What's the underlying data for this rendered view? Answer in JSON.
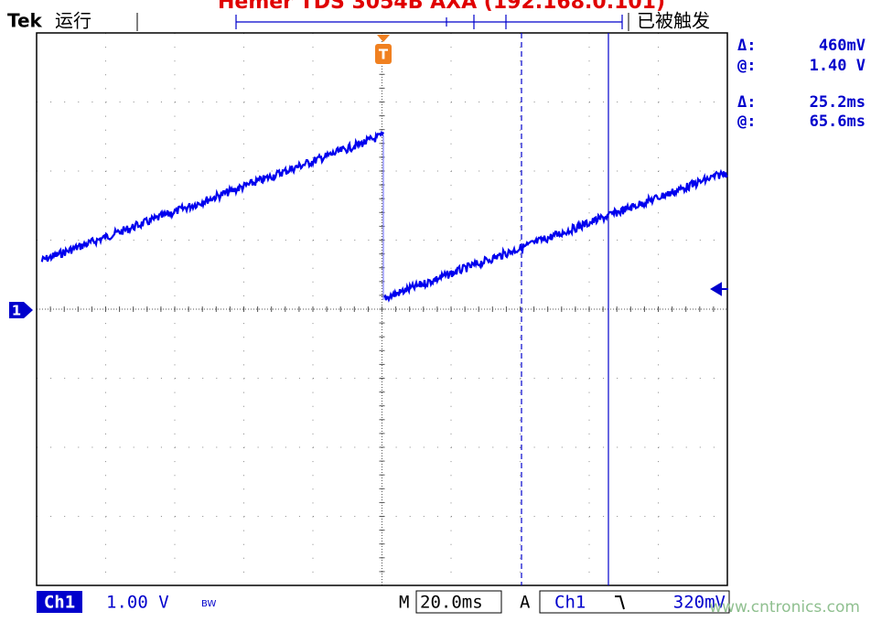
{
  "header": {
    "brand": "Tek",
    "status": "运行",
    "title": "Hemer TDS 3054B AXA (192.168.0.101)",
    "trigger_state": "已被触发",
    "trigger_marker": "T"
  },
  "readouts": [
    {
      "symbol": "Δ:",
      "value": "460mV"
    },
    {
      "symbol": "@:",
      "value": "1.40 V"
    },
    {
      "symbol": "Δ:",
      "value": "25.2ms"
    },
    {
      "symbol": "@:",
      "value": "65.6ms"
    }
  ],
  "channel_marker": "1",
  "footer": {
    "channel": "Ch1",
    "scale": "1.00 V",
    "bandwidth": "BW",
    "time_label": "M",
    "time_scale": "20.0ms",
    "trigger_mode": "A",
    "trigger_source": "Ch1",
    "trigger_level": "320mV",
    "watermark": "www.cntronics.com"
  }
}
